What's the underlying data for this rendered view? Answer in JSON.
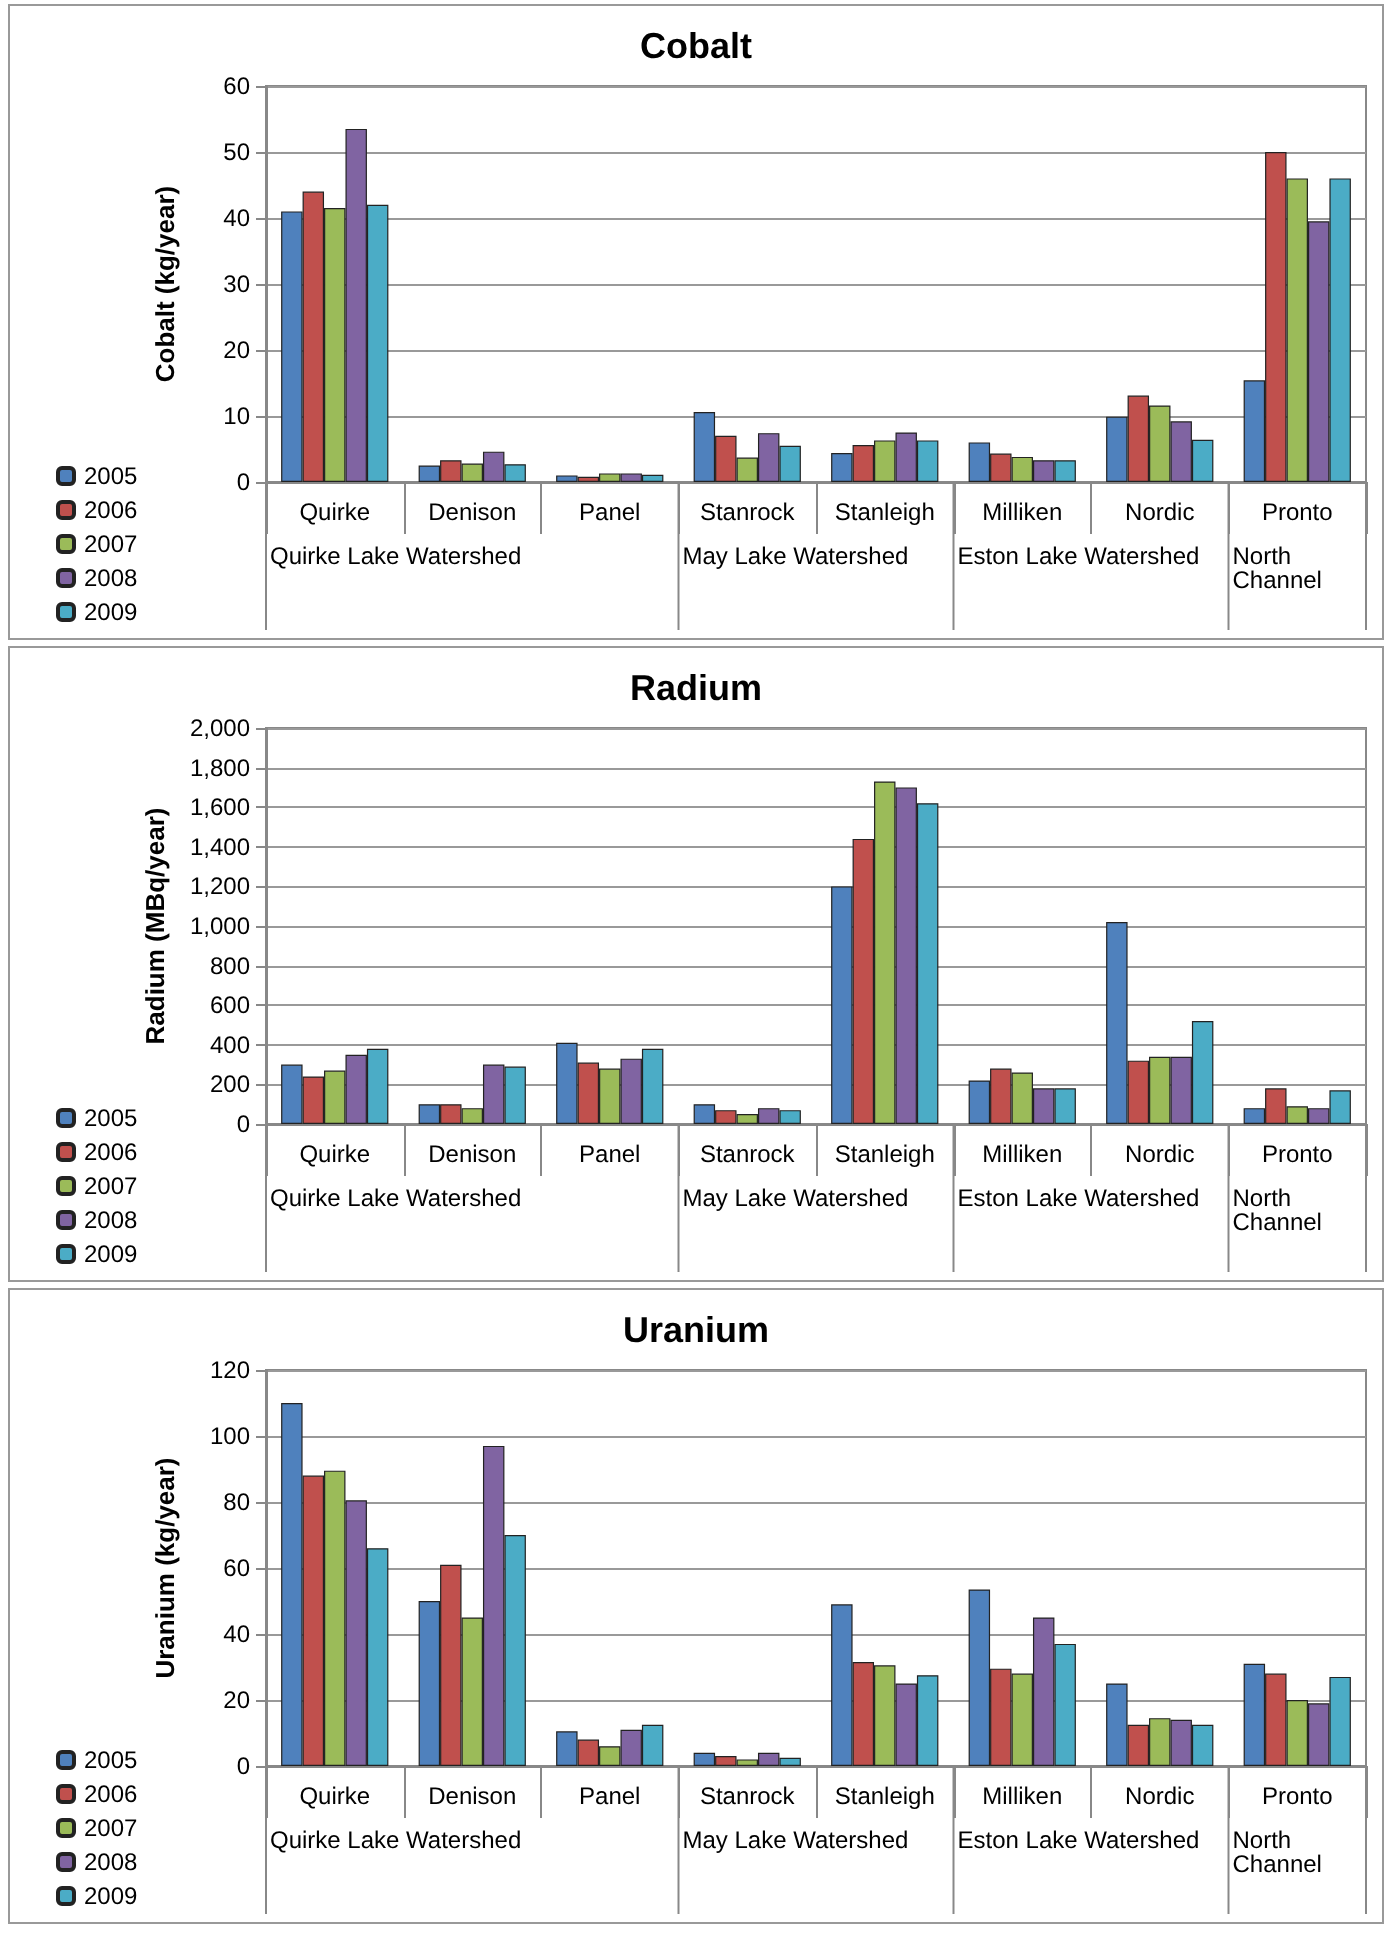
{
  "chart_data": [
    {
      "type": "bar",
      "title": "Cobalt",
      "ylabel": "Cobalt (kg/year)",
      "categories": [
        "Quirke",
        "Denison",
        "Panel",
        "Stanrock",
        "Stanleigh",
        "Milliken",
        "Nordic",
        "Pronto"
      ],
      "annotations": [
        "Quirke Lake Watershed",
        "May Lake Watershed",
        "Eston Lake Watershed",
        "North Channel"
      ],
      "series": [
        {
          "name": "2005",
          "color": "#4f81bd",
          "values": [
            41,
            2.5,
            1,
            10.6,
            4.4,
            6,
            9.9,
            15.4
          ]
        },
        {
          "name": "2006",
          "color": "#c0504d",
          "values": [
            44,
            3.3,
            0.8,
            7,
            5.6,
            4.3,
            13.1,
            50
          ]
        },
        {
          "name": "2007",
          "color": "#9bbb59",
          "values": [
            41.5,
            2.8,
            1.3,
            3.7,
            6.3,
            3.8,
            11.6,
            46
          ]
        },
        {
          "name": "2008",
          "color": "#8064a2",
          "values": [
            53.5,
            4.6,
            1.3,
            7.4,
            7.5,
            3.3,
            9.2,
            39.5
          ]
        },
        {
          "name": "2009",
          "color": "#4bacc6",
          "values": [
            42,
            2.7,
            1.1,
            5.5,
            6.3,
            3.3,
            6.4,
            46
          ]
        }
      ],
      "ylim": [
        0,
        60
      ],
      "yticks": [
        0,
        10,
        20,
        30,
        40,
        50,
        60
      ],
      "grid": "y",
      "legend": "bottom left"
    },
    {
      "type": "bar",
      "title": "Radium",
      "ylabel": "Radium (MBq/year)",
      "categories": [
        "Quirke",
        "Denison",
        "Panel",
        "Stanrock",
        "Stanleigh",
        "Milliken",
        "Nordic",
        "Pronto"
      ],
      "annotations": [
        "Quirke Lake Watershed",
        "May Lake Watershed",
        "Eston Lake Watershed",
        "North Channel"
      ],
      "series": [
        {
          "name": "2005",
          "color": "#4f81bd",
          "values": [
            300,
            100,
            410,
            100,
            1200,
            220,
            1020,
            80
          ]
        },
        {
          "name": "2006",
          "color": "#c0504d",
          "values": [
            240,
            100,
            310,
            70,
            1440,
            280,
            320,
            180
          ]
        },
        {
          "name": "2007",
          "color": "#9bbb59",
          "values": [
            270,
            80,
            280,
            50,
            1730,
            260,
            340,
            90
          ]
        },
        {
          "name": "2008",
          "color": "#8064a2",
          "values": [
            350,
            300,
            330,
            80,
            1700,
            180,
            340,
            80
          ]
        },
        {
          "name": "2009",
          "color": "#4bacc6",
          "values": [
            380,
            290,
            380,
            70,
            1620,
            180,
            520,
            170
          ]
        }
      ],
      "ylim": [
        0,
        2000
      ],
      "yticks": [
        {
          "value": 0,
          "label": "0"
        },
        {
          "value": 200,
          "label": "200"
        },
        {
          "value": 400,
          "label": "400"
        },
        {
          "value": 600,
          "label": "600"
        },
        {
          "value": 800,
          "label": "800"
        },
        {
          "value": 1000,
          "label": "1,000"
        },
        {
          "value": 1200,
          "label": "1,200"
        },
        {
          "value": 1400,
          "label": "1,400"
        },
        {
          "value": 1600,
          "label": "1,600"
        },
        {
          "value": 1800,
          "label": "1,800"
        },
        {
          "value": 2000,
          "label": "2,000"
        }
      ],
      "grid": "y",
      "legend": "bottom left"
    },
    {
      "type": "bar",
      "title": "Uranium",
      "ylabel": "Uranium (kg/year)",
      "categories": [
        "Quirke",
        "Denison",
        "Panel",
        "Stanrock",
        "Stanleigh",
        "Milliken",
        "Nordic",
        "Pronto"
      ],
      "annotations": [
        "Quirke Lake Watershed",
        "May Lake Watershed",
        "Eston Lake Watershed",
        "North Channel"
      ],
      "series": [
        {
          "name": "2005",
          "color": "#4f81bd",
          "values": [
            110,
            50,
            10.5,
            4,
            49,
            53.5,
            25,
            31
          ]
        },
        {
          "name": "2006",
          "color": "#c0504d",
          "values": [
            88,
            61,
            8,
            3,
            31.5,
            29.5,
            12.5,
            28
          ]
        },
        {
          "name": "2007",
          "color": "#9bbb59",
          "values": [
            89.5,
            45,
            6,
            2,
            30.5,
            28,
            14.5,
            20
          ]
        },
        {
          "name": "2008",
          "color": "#8064a2",
          "values": [
            80.5,
            97,
            11,
            4,
            25,
            45,
            14,
            19
          ]
        },
        {
          "name": "2009",
          "color": "#4bacc6",
          "values": [
            66,
            70,
            12.5,
            2.5,
            27.5,
            37,
            12.5,
            27
          ]
        }
      ],
      "ylim": [
        0,
        120
      ],
      "yticks": [
        0,
        20,
        40,
        60,
        80,
        100,
        120
      ],
      "grid": "y",
      "legend": "bottom left"
    }
  ]
}
